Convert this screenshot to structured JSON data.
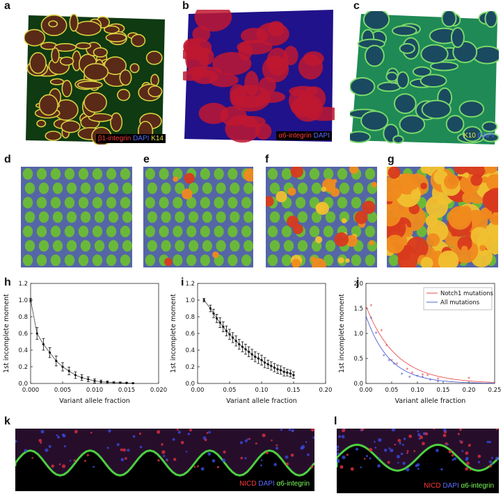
{
  "panels": {
    "a": "a",
    "b": "b",
    "c": "c",
    "d": "d",
    "e": "e",
    "f": "f",
    "g": "g",
    "h": "h",
    "i": "i",
    "j": "j",
    "k": "k",
    "l": "l"
  },
  "captions": {
    "a": [
      {
        "text": "β1-integrin",
        "color": "#ff3b3b"
      },
      {
        "text": " DAPI",
        "color": "#5a6cff"
      },
      {
        "text": " K14",
        "color": "#e8e84a"
      }
    ],
    "b": [
      {
        "text": "α6-integrin",
        "color": "#ff3b3b"
      },
      {
        "text": " DAPI",
        "color": "#5a6cff"
      }
    ],
    "c": [
      {
        "text": "K10",
        "color": "#e8e84a"
      },
      {
        "text": " DAPI",
        "color": "#5a6cff"
      }
    ],
    "k": [
      {
        "text": "NICD",
        "color": "#ff3b3b"
      },
      {
        "text": " DAPI",
        "color": "#5a6cff"
      },
      {
        "text": " α6-integrin",
        "color": "#7cff5a"
      }
    ],
    "l": [
      {
        "text": "NICD",
        "color": "#ff3b3b"
      },
      {
        "text": " DAPI",
        "color": "#5a6cff"
      },
      {
        "text": " α6-integrin",
        "color": "#7cff5a"
      }
    ]
  },
  "colors": {
    "sim_background": "#5566a6",
    "sim_progenitor": "#6ab83a",
    "sim_mutant_orange": "#f08a1e",
    "sim_mutant_red": "#d93a1e",
    "sim_mutant_yellow": "#f0c030",
    "notch1": "#e85050",
    "all_mutations": "#5060d0",
    "data_black": "#111111"
  },
  "chart_data": [
    {
      "panel": "h",
      "type": "scatter",
      "ylabel": "1st incomplete moment",
      "xlabel": "Variant allele fraction",
      "xlim": [
        0,
        0.02
      ],
      "ylim": [
        0,
        1.2
      ],
      "xticks": [
        "0.000",
        "0.005",
        "0.010",
        "0.015",
        "0.020"
      ],
      "yticks": [
        "0.0",
        "0.2",
        "0.4",
        "0.6",
        "0.8",
        "1.0",
        "1.2"
      ],
      "x": [
        0.0,
        0.001,
        0.002,
        0.003,
        0.004,
        0.005,
        0.006,
        0.007,
        0.008,
        0.009,
        0.01,
        0.011,
        0.012,
        0.013,
        0.014,
        0.015,
        0.016
      ],
      "y": [
        1.0,
        0.6,
        0.47,
        0.37,
        0.27,
        0.2,
        0.15,
        0.1,
        0.07,
        0.05,
        0.03,
        0.02,
        0.015,
        0.01,
        0.008,
        0.005,
        0.003
      ],
      "err": [
        0.02,
        0.07,
        0.07,
        0.06,
        0.06,
        0.05,
        0.045,
        0.04,
        0.035,
        0.03,
        0.025,
        0.02,
        0.015,
        0.01,
        0.01,
        0.008,
        0.005
      ]
    },
    {
      "panel": "i",
      "type": "scatter",
      "ylabel": "1st incomplete moment",
      "xlabel": "Variant allele fraction",
      "xlim": [
        0,
        0.2
      ],
      "ylim": [
        0,
        1.2
      ],
      "xticks": [
        "0.00",
        "0.05",
        "0.10",
        "0.15",
        "0.20"
      ],
      "yticks": [
        "0.0",
        "0.2",
        "0.4",
        "0.6",
        "0.8",
        "1.0",
        "1.2"
      ],
      "x": [
        0.01,
        0.02,
        0.025,
        0.03,
        0.035,
        0.04,
        0.045,
        0.05,
        0.055,
        0.06,
        0.065,
        0.07,
        0.075,
        0.08,
        0.085,
        0.09,
        0.095,
        0.1,
        0.105,
        0.11,
        0.115,
        0.12,
        0.125,
        0.13,
        0.135,
        0.14,
        0.145,
        0.15
      ],
      "y": [
        1.0,
        0.9,
        0.84,
        0.78,
        0.73,
        0.68,
        0.63,
        0.59,
        0.55,
        0.51,
        0.47,
        0.44,
        0.41,
        0.38,
        0.35,
        0.32,
        0.3,
        0.28,
        0.25,
        0.23,
        0.21,
        0.19,
        0.17,
        0.16,
        0.14,
        0.13,
        0.12,
        0.1
      ],
      "err": [
        0.02,
        0.04,
        0.05,
        0.05,
        0.06,
        0.06,
        0.06,
        0.06,
        0.06,
        0.06,
        0.06,
        0.06,
        0.06,
        0.06,
        0.06,
        0.06,
        0.06,
        0.06,
        0.06,
        0.05,
        0.05,
        0.05,
        0.05,
        0.05,
        0.05,
        0.04,
        0.04,
        0.04
      ]
    },
    {
      "panel": "j",
      "type": "scatter",
      "ylabel": "1st incomplete moment",
      "xlabel": "Variant allele fraction",
      "xlim": [
        0,
        0.25
      ],
      "ylim": [
        0,
        2.0
      ],
      "xticks": [
        "0.00",
        "0.05",
        "0.10",
        "0.15",
        "0.20",
        "0.25"
      ],
      "yticks": [
        "0.0",
        "0.5",
        "1.0",
        "1.5",
        "2.0"
      ],
      "legend_position": "top-right",
      "series": [
        {
          "name": "Notch1 mutations",
          "color": "#e85050",
          "x": [
            0.01,
            0.03,
            0.04,
            0.05,
            0.06,
            0.08,
            0.09,
            0.11,
            0.12,
            0.14,
            0.2
          ],
          "y": [
            1.55,
            1.05,
            0.75,
            0.45,
            0.38,
            0.28,
            0.2,
            0.17,
            0.15,
            0.08,
            0.1
          ],
          "fit_a": 1.55,
          "fit_k": 17.0
        },
        {
          "name": "All mutations",
          "color": "#5060d0",
          "x": [
            0.01,
            0.02,
            0.035,
            0.045,
            0.055,
            0.07,
            0.085,
            0.1,
            0.11,
            0.125,
            0.14
          ],
          "y": [
            1.3,
            1.0,
            0.55,
            0.45,
            0.38,
            0.18,
            0.12,
            0.14,
            0.12,
            0.06,
            0.03
          ],
          "fit_a": 1.35,
          "fit_k": 22.0
        }
      ]
    }
  ]
}
